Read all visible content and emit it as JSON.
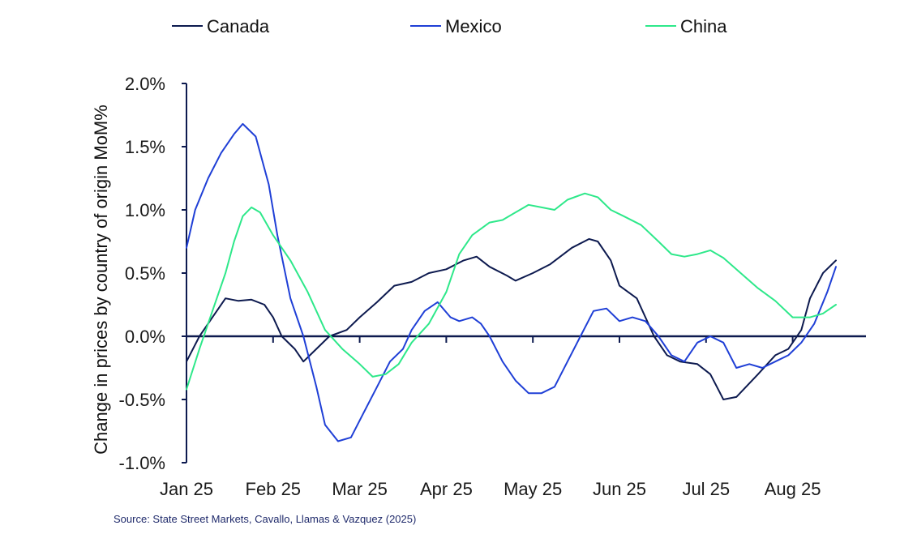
{
  "chart_data": {
    "type": "line",
    "ylabel": "Change in prices by country of origin  MoM%",
    "source": "Source: State Street Markets, Cavallo, Llamas & Vazquez (2025)",
    "ylim": [
      -1.0,
      2.0
    ],
    "yticks": [
      2.0,
      1.5,
      1.0,
      0.5,
      0.0,
      -0.5,
      -1.0
    ],
    "ytick_labels": [
      "2.0%",
      "1.5%",
      "1.0%",
      "0.5%",
      "0.0%",
      "-0.5%",
      "-1.0%"
    ],
    "x_tick_labels": [
      "Jan 25",
      "Feb 25",
      "Mar 25",
      "Apr 25",
      "May 25",
      "Jun 25",
      "Jul 25",
      "Aug 25"
    ],
    "x_unit": "months since Jan 25",
    "xlim": [
      0,
      7.5
    ],
    "legend_position": "top",
    "grid": false,
    "series": [
      {
        "name": "Canada",
        "color": "#0d1a4f",
        "points": [
          [
            0.0,
            -0.2
          ],
          [
            0.15,
            0.0
          ],
          [
            0.3,
            0.15
          ],
          [
            0.45,
            0.3
          ],
          [
            0.6,
            0.28
          ],
          [
            0.75,
            0.29
          ],
          [
            0.9,
            0.25
          ],
          [
            1.0,
            0.15
          ],
          [
            1.1,
            0.0
          ],
          [
            1.25,
            -0.1
          ],
          [
            1.35,
            -0.2
          ],
          [
            1.5,
            -0.1
          ],
          [
            1.65,
            0.0
          ],
          [
            1.85,
            0.05
          ],
          [
            2.0,
            0.15
          ],
          [
            2.2,
            0.27
          ],
          [
            2.4,
            0.4
          ],
          [
            2.6,
            0.43
          ],
          [
            2.8,
            0.5
          ],
          [
            3.0,
            0.53
          ],
          [
            3.2,
            0.6
          ],
          [
            3.35,
            0.63
          ],
          [
            3.5,
            0.55
          ],
          [
            3.7,
            0.48
          ],
          [
            3.8,
            0.44
          ],
          [
            4.0,
            0.5
          ],
          [
            4.2,
            0.57
          ],
          [
            4.45,
            0.7
          ],
          [
            4.65,
            0.77
          ],
          [
            4.75,
            0.75
          ],
          [
            4.9,
            0.6
          ],
          [
            5.0,
            0.4
          ],
          [
            5.2,
            0.3
          ],
          [
            5.4,
            0.0
          ],
          [
            5.55,
            -0.15
          ],
          [
            5.7,
            -0.2
          ],
          [
            5.9,
            -0.22
          ],
          [
            6.05,
            -0.3
          ],
          [
            6.2,
            -0.5
          ],
          [
            6.35,
            -0.48
          ],
          [
            6.6,
            -0.3
          ],
          [
            6.8,
            -0.15
          ],
          [
            6.95,
            -0.1
          ],
          [
            7.1,
            0.05
          ],
          [
            7.2,
            0.3
          ],
          [
            7.35,
            0.5
          ],
          [
            7.5,
            0.6
          ]
        ]
      },
      {
        "name": "Mexico",
        "color": "#1f3fd6",
        "points": [
          [
            0.0,
            0.7
          ],
          [
            0.1,
            1.0
          ],
          [
            0.25,
            1.25
          ],
          [
            0.4,
            1.45
          ],
          [
            0.55,
            1.6
          ],
          [
            0.65,
            1.68
          ],
          [
            0.8,
            1.58
          ],
          [
            0.95,
            1.2
          ],
          [
            1.05,
            0.8
          ],
          [
            1.2,
            0.3
          ],
          [
            1.35,
            0.0
          ],
          [
            1.5,
            -0.4
          ],
          [
            1.6,
            -0.7
          ],
          [
            1.75,
            -0.83
          ],
          [
            1.9,
            -0.8
          ],
          [
            2.05,
            -0.6
          ],
          [
            2.2,
            -0.4
          ],
          [
            2.35,
            -0.2
          ],
          [
            2.5,
            -0.1
          ],
          [
            2.6,
            0.05
          ],
          [
            2.75,
            0.2
          ],
          [
            2.9,
            0.27
          ],
          [
            3.05,
            0.15
          ],
          [
            3.15,
            0.12
          ],
          [
            3.3,
            0.15
          ],
          [
            3.4,
            0.1
          ],
          [
            3.5,
            0.0
          ],
          [
            3.65,
            -0.2
          ],
          [
            3.8,
            -0.35
          ],
          [
            3.95,
            -0.45
          ],
          [
            4.1,
            -0.45
          ],
          [
            4.25,
            -0.4
          ],
          [
            4.4,
            -0.2
          ],
          [
            4.55,
            0.0
          ],
          [
            4.7,
            0.2
          ],
          [
            4.85,
            0.22
          ],
          [
            5.0,
            0.12
          ],
          [
            5.15,
            0.15
          ],
          [
            5.3,
            0.12
          ],
          [
            5.45,
            0.0
          ],
          [
            5.6,
            -0.15
          ],
          [
            5.75,
            -0.2
          ],
          [
            5.9,
            -0.05
          ],
          [
            6.05,
            0.0
          ],
          [
            6.2,
            -0.05
          ],
          [
            6.35,
            -0.25
          ],
          [
            6.5,
            -0.22
          ],
          [
            6.65,
            -0.25
          ],
          [
            6.8,
            -0.2
          ],
          [
            6.95,
            -0.15
          ],
          [
            7.1,
            -0.05
          ],
          [
            7.25,
            0.1
          ],
          [
            7.4,
            0.35
          ],
          [
            7.5,
            0.55
          ]
        ]
      },
      {
        "name": "China",
        "color": "#2ee88a",
        "points": [
          [
            0.0,
            -0.42
          ],
          [
            0.15,
            -0.1
          ],
          [
            0.3,
            0.2
          ],
          [
            0.45,
            0.5
          ],
          [
            0.55,
            0.75
          ],
          [
            0.65,
            0.95
          ],
          [
            0.75,
            1.02
          ],
          [
            0.85,
            0.98
          ],
          [
            1.0,
            0.8
          ],
          [
            1.2,
            0.6
          ],
          [
            1.4,
            0.35
          ],
          [
            1.6,
            0.05
          ],
          [
            1.8,
            -0.1
          ],
          [
            2.0,
            -0.22
          ],
          [
            2.15,
            -0.32
          ],
          [
            2.3,
            -0.3
          ],
          [
            2.45,
            -0.22
          ],
          [
            2.6,
            -0.05
          ],
          [
            2.8,
            0.1
          ],
          [
            3.0,
            0.35
          ],
          [
            3.15,
            0.65
          ],
          [
            3.3,
            0.8
          ],
          [
            3.5,
            0.9
          ],
          [
            3.65,
            0.92
          ],
          [
            3.8,
            0.98
          ],
          [
            3.95,
            1.04
          ],
          [
            4.1,
            1.02
          ],
          [
            4.25,
            1.0
          ],
          [
            4.4,
            1.08
          ],
          [
            4.6,
            1.13
          ],
          [
            4.75,
            1.1
          ],
          [
            4.9,
            1.0
          ],
          [
            5.05,
            0.95
          ],
          [
            5.25,
            0.88
          ],
          [
            5.45,
            0.75
          ],
          [
            5.6,
            0.65
          ],
          [
            5.75,
            0.63
          ],
          [
            5.9,
            0.65
          ],
          [
            6.05,
            0.68
          ],
          [
            6.2,
            0.62
          ],
          [
            6.4,
            0.5
          ],
          [
            6.6,
            0.38
          ],
          [
            6.8,
            0.28
          ],
          [
            7.0,
            0.15
          ],
          [
            7.2,
            0.15
          ],
          [
            7.35,
            0.18
          ],
          [
            7.5,
            0.25
          ]
        ]
      }
    ]
  }
}
